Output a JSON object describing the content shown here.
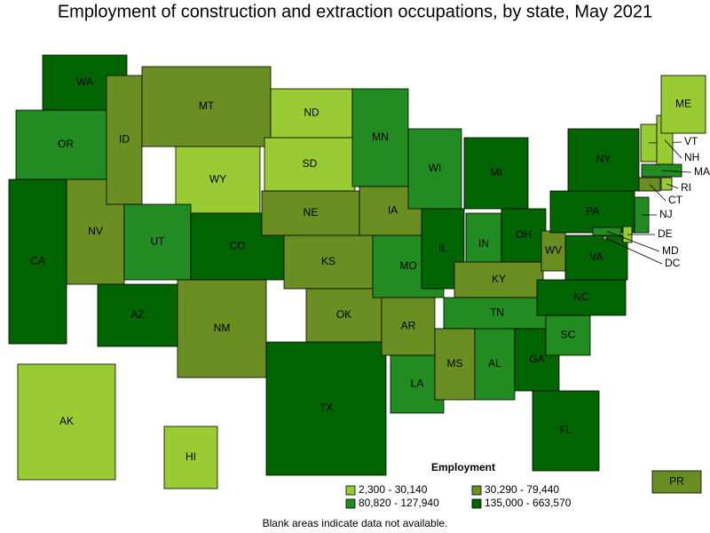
{
  "title": "Employment of construction and extraction occupations, by state, May 2021",
  "legend": {
    "title": "Employment",
    "items": [
      {
        "label": "2,300 - 30,140",
        "color": "#99cc33"
      },
      {
        "label": "30,290 - 79,440",
        "color": "#6b8e23"
      },
      {
        "label": "80,820 - 127,940",
        "color": "#228b22"
      },
      {
        "label": "135,000 - 663,570",
        "color": "#006400"
      }
    ]
  },
  "footnote": "Blank areas indicate data not available.",
  "states": [
    {
      "abbr": "WA",
      "color": "#006400"
    },
    {
      "abbr": "OR",
      "color": "#228b22"
    },
    {
      "abbr": "CA",
      "color": "#006400"
    },
    {
      "abbr": "NV",
      "color": "#6b8e23"
    },
    {
      "abbr": "ID",
      "color": "#6b8e23"
    },
    {
      "abbr": "MT",
      "color": "#6b8e23"
    },
    {
      "abbr": "WY",
      "color": "#99cc33"
    },
    {
      "abbr": "UT",
      "color": "#228b22"
    },
    {
      "abbr": "CO",
      "color": "#006400"
    },
    {
      "abbr": "AZ",
      "color": "#006400"
    },
    {
      "abbr": "NM",
      "color": "#6b8e23"
    },
    {
      "abbr": "ND",
      "color": "#99cc33"
    },
    {
      "abbr": "SD",
      "color": "#99cc33"
    },
    {
      "abbr": "NE",
      "color": "#6b8e23"
    },
    {
      "abbr": "KS",
      "color": "#6b8e23"
    },
    {
      "abbr": "OK",
      "color": "#6b8e23"
    },
    {
      "abbr": "TX",
      "color": "#006400"
    },
    {
      "abbr": "MN",
      "color": "#228b22"
    },
    {
      "abbr": "IA",
      "color": "#6b8e23"
    },
    {
      "abbr": "MO",
      "color": "#228b22"
    },
    {
      "abbr": "AR",
      "color": "#6b8e23"
    },
    {
      "abbr": "LA",
      "color": "#228b22"
    },
    {
      "abbr": "WI",
      "color": "#228b22"
    },
    {
      "abbr": "IL",
      "color": "#006400"
    },
    {
      "abbr": "MI",
      "color": "#006400"
    },
    {
      "abbr": "IN",
      "color": "#228b22"
    },
    {
      "abbr": "OH",
      "color": "#006400"
    },
    {
      "abbr": "KY",
      "color": "#6b8e23"
    },
    {
      "abbr": "TN",
      "color": "#228b22"
    },
    {
      "abbr": "MS",
      "color": "#6b8e23"
    },
    {
      "abbr": "AL",
      "color": "#228b22"
    },
    {
      "abbr": "GA",
      "color": "#006400"
    },
    {
      "abbr": "FL",
      "color": "#006400"
    },
    {
      "abbr": "SC",
      "color": "#228b22"
    },
    {
      "abbr": "NC",
      "color": "#006400"
    },
    {
      "abbr": "VA",
      "color": "#006400"
    },
    {
      "abbr": "WV",
      "color": "#6b8e23"
    },
    {
      "abbr": "PA",
      "color": "#006400"
    },
    {
      "abbr": "NY",
      "color": "#006400"
    },
    {
      "abbr": "NJ",
      "color": "#228b22"
    },
    {
      "abbr": "DE",
      "color": "#99cc33"
    },
    {
      "abbr": "MD",
      "color": "#228b22"
    },
    {
      "abbr": "DC",
      "color": "#99cc33"
    },
    {
      "abbr": "VT",
      "color": "#99cc33"
    },
    {
      "abbr": "NH",
      "color": "#99cc33"
    },
    {
      "abbr": "ME",
      "color": "#99cc33"
    },
    {
      "abbr": "MA",
      "color": "#228b22"
    },
    {
      "abbr": "CT",
      "color": "#6b8e23"
    },
    {
      "abbr": "RI",
      "color": "#99cc33"
    },
    {
      "abbr": "AK",
      "color": "#99cc33"
    },
    {
      "abbr": "HI",
      "color": "#99cc33"
    },
    {
      "abbr": "PR",
      "color": "#6b8e23"
    }
  ]
}
